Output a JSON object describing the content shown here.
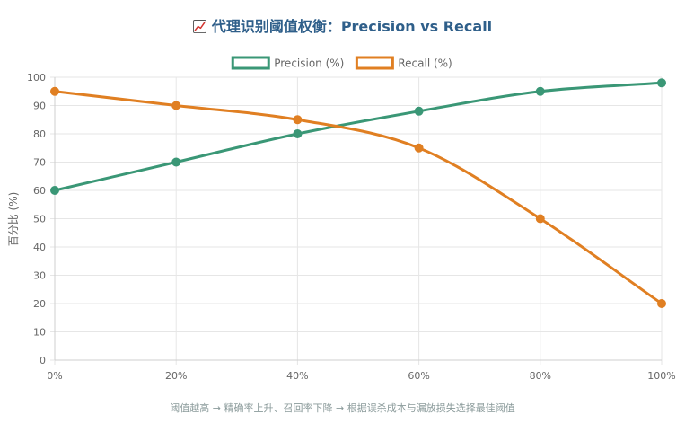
{
  "title": "代理识别阈值权衡：Precision vs Recall",
  "title_icon": "chart-increasing-icon",
  "footer_note": "阈值越高 → 精确率上升、召回率下降 → 根据误杀成本与漏放损失选择最佳阈值",
  "chart_data": {
    "type": "line",
    "title": "代理识别阈值权衡：Precision vs Recall",
    "xlabel": "",
    "ylabel": "百分比 (%)",
    "categories": [
      "0%",
      "20%",
      "40%",
      "60%",
      "80%",
      "100%"
    ],
    "ylim": [
      0,
      100
    ],
    "yticks": [
      0,
      10,
      20,
      30,
      40,
      50,
      60,
      70,
      80,
      90,
      100
    ],
    "grid": true,
    "legend_position": "top-center",
    "series": [
      {
        "name": "Precision (%)",
        "values": [
          60,
          70,
          80,
          88,
          95,
          98
        ],
        "color": "#3a9776"
      },
      {
        "name": "Recall (%)",
        "values": [
          95,
          90,
          85,
          75,
          50,
          20
        ],
        "color": "#e07f22"
      }
    ]
  }
}
